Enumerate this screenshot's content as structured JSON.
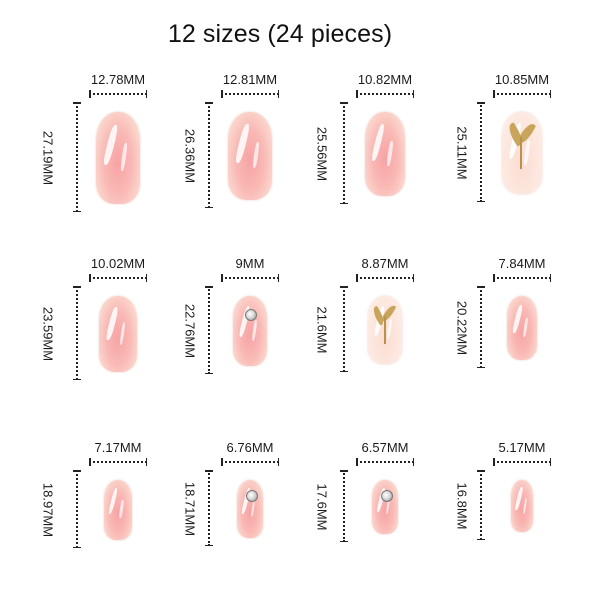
{
  "title": "12 sizes (24 pieces)",
  "nails": [
    {
      "width": "12.78MM",
      "height": "27.19MM",
      "design": "pink"
    },
    {
      "width": "12.81MM",
      "height": "26.36MM",
      "design": "pink"
    },
    {
      "width": "10.82MM",
      "height": "25.56MM",
      "design": "pink"
    },
    {
      "width": "10.85MM",
      "height": "25.11MM",
      "design": "leaf"
    },
    {
      "width": "10.02MM",
      "height": "23.59MM",
      "design": "pink"
    },
    {
      "width": "9MM",
      "height": "22.76MM",
      "design": "gem"
    },
    {
      "width": "8.87MM",
      "height": "21.6MM",
      "design": "leaf"
    },
    {
      "width": "7.84MM",
      "height": "20.22MM",
      "design": "pink"
    },
    {
      "width": "7.17MM",
      "height": "18.97MM",
      "design": "pink"
    },
    {
      "width": "6.76MM",
      "height": "18.71MM",
      "design": "gem"
    },
    {
      "width": "6.57MM",
      "height": "17.6MM",
      "design": "gem"
    },
    {
      "width": "5.17MM",
      "height": "16.8MM",
      "design": "pink"
    }
  ]
}
